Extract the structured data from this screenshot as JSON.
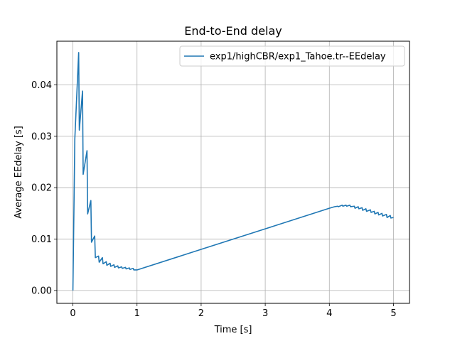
{
  "chart_data": {
    "type": "line",
    "title": "End-to-End delay",
    "xlabel": "Time [s]",
    "ylabel": "Average EEdelay [s]",
    "xlim": [
      -0.25,
      5.25
    ],
    "ylim": [
      -0.0025,
      0.0485
    ],
    "xticks": [
      0,
      1,
      2,
      3,
      4,
      5
    ],
    "xtick_labels": [
      "0",
      "1",
      "2",
      "3",
      "4",
      "5"
    ],
    "yticks": [
      0.0,
      0.01,
      0.02,
      0.03,
      0.04
    ],
    "ytick_labels": [
      "0.00",
      "0.01",
      "0.02",
      "0.03",
      "0.04"
    ],
    "grid": true,
    "legend": "top-right",
    "series": [
      {
        "name": "exp1/highCBR/exp1_Tahoe.tr--EEdelay",
        "color": "#1f77b4",
        "x": [
          0.0,
          0.03,
          0.09,
          0.1,
          0.15,
          0.16,
          0.22,
          0.23,
          0.28,
          0.29,
          0.34,
          0.35,
          0.4,
          0.41,
          0.46,
          0.47,
          0.52,
          0.53,
          0.58,
          0.59,
          0.64,
          0.65,
          0.7,
          0.71,
          0.76,
          0.77,
          0.82,
          0.83,
          0.88,
          0.89,
          0.94,
          0.95,
          1.0,
          2.0,
          3.0,
          4.0,
          4.08,
          4.13,
          4.14,
          4.2,
          4.21,
          4.26,
          4.27,
          4.32,
          4.33,
          4.39,
          4.4,
          4.45,
          4.46,
          4.51,
          4.52,
          4.57,
          4.58,
          4.64,
          4.65,
          4.7,
          4.71,
          4.76,
          4.77,
          4.82,
          4.83,
          4.89,
          4.9,
          4.95,
          4.96,
          5.0
        ],
        "y": [
          0.0,
          0.0295,
          0.0463,
          0.0312,
          0.0388,
          0.0226,
          0.0272,
          0.0149,
          0.0175,
          0.0094,
          0.0106,
          0.0064,
          0.0067,
          0.0055,
          0.0064,
          0.0052,
          0.0056,
          0.0049,
          0.0053,
          0.0047,
          0.005,
          0.0045,
          0.0048,
          0.0044,
          0.0046,
          0.0043,
          0.0045,
          0.0042,
          0.0044,
          0.0041,
          0.0043,
          0.004,
          0.004,
          0.008,
          0.012,
          0.016,
          0.0163,
          0.0164,
          0.0163,
          0.0166,
          0.0164,
          0.0166,
          0.0164,
          0.0166,
          0.0163,
          0.0164,
          0.016,
          0.0163,
          0.0159,
          0.0161,
          0.0156,
          0.0159,
          0.0154,
          0.0157,
          0.0152,
          0.0154,
          0.0149,
          0.0152,
          0.0147,
          0.015,
          0.0145,
          0.0148,
          0.0142,
          0.0146,
          0.0141,
          0.0142
        ]
      }
    ]
  }
}
